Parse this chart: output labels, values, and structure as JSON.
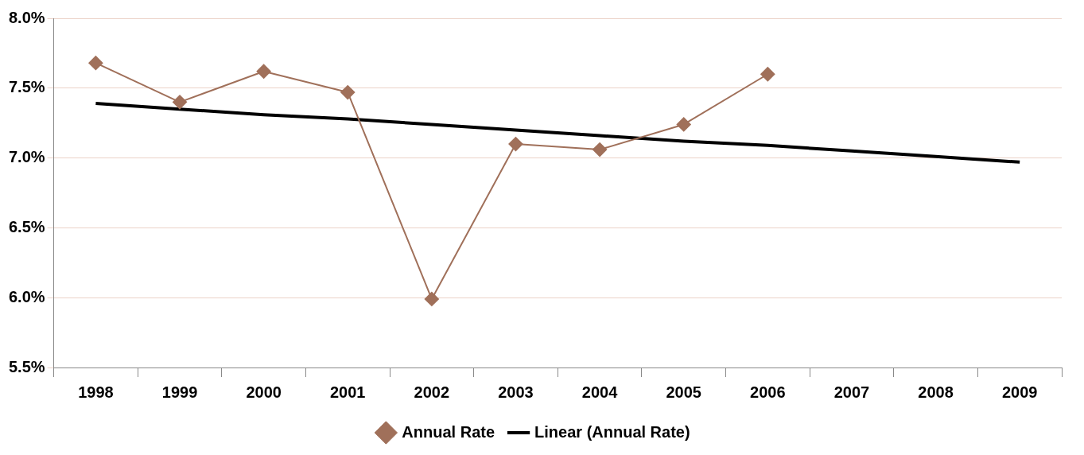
{
  "chart_data": {
    "type": "line",
    "categories": [
      "1998",
      "1999",
      "2000",
      "2001",
      "2002",
      "2003",
      "2004",
      "2005",
      "2006",
      "2007",
      "2008",
      "2009"
    ],
    "series": [
      {
        "name": "Annual Rate",
        "color": "#a0705a",
        "marker": "diamond",
        "values": [
          7.68,
          7.4,
          7.62,
          7.47,
          5.99,
          7.1,
          7.06,
          7.24,
          7.6,
          null,
          null,
          null
        ]
      },
      {
        "name": "Linear (Annual Rate)",
        "type": "line",
        "color": "#000000",
        "marker": "none",
        "values": [
          7.39,
          7.35,
          7.31,
          7.28,
          7.24,
          7.2,
          7.16,
          7.12,
          7.09,
          7.05,
          7.01,
          6.97
        ]
      }
    ],
    "ylim": [
      5.5,
      8.0
    ],
    "yticks": [
      {
        "value": 5.5,
        "label": "5.5%"
      },
      {
        "value": 6.0,
        "label": "6.0%"
      },
      {
        "value": 6.5,
        "label": "6.5%"
      },
      {
        "value": 7.0,
        "label": "7.0%"
      },
      {
        "value": 7.5,
        "label": "7.5%"
      },
      {
        "value": 8.0,
        "label": "8.0%"
      }
    ],
    "grid": "y",
    "legend": "bottom"
  }
}
